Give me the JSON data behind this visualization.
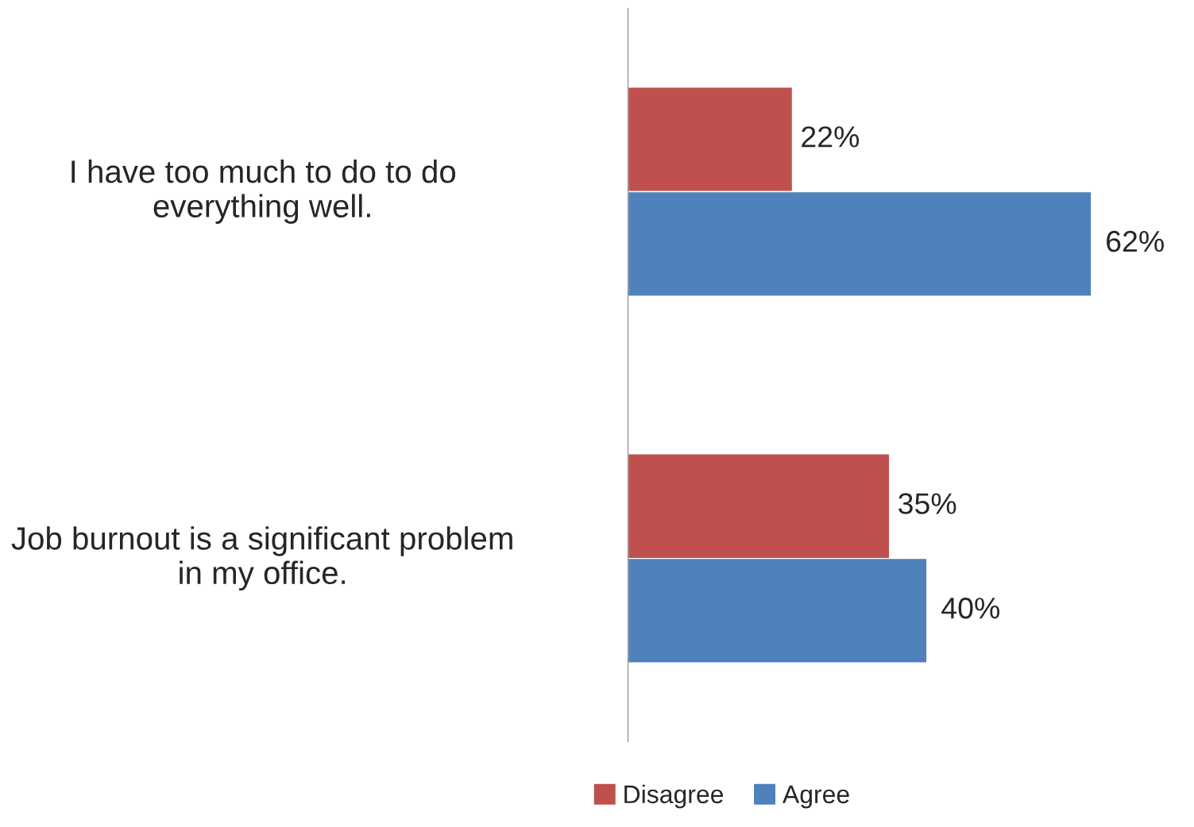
{
  "chart_data": {
    "type": "bar",
    "orientation": "horizontal",
    "categories": [
      "I have too much to do to do everything well.",
      "Job burnout is a significant problem in my office."
    ],
    "series": [
      {
        "name": "Disagree",
        "color": "#c0504d",
        "values": [
          22,
          35
        ],
        "value_labels": [
          "22%",
          "35%"
        ]
      },
      {
        "name": "Agree",
        "color": "#4f81bd",
        "values": [
          62,
          40
        ],
        "value_labels": [
          "62%",
          "40%"
        ]
      }
    ],
    "legend": "bottom",
    "grid": false
  }
}
